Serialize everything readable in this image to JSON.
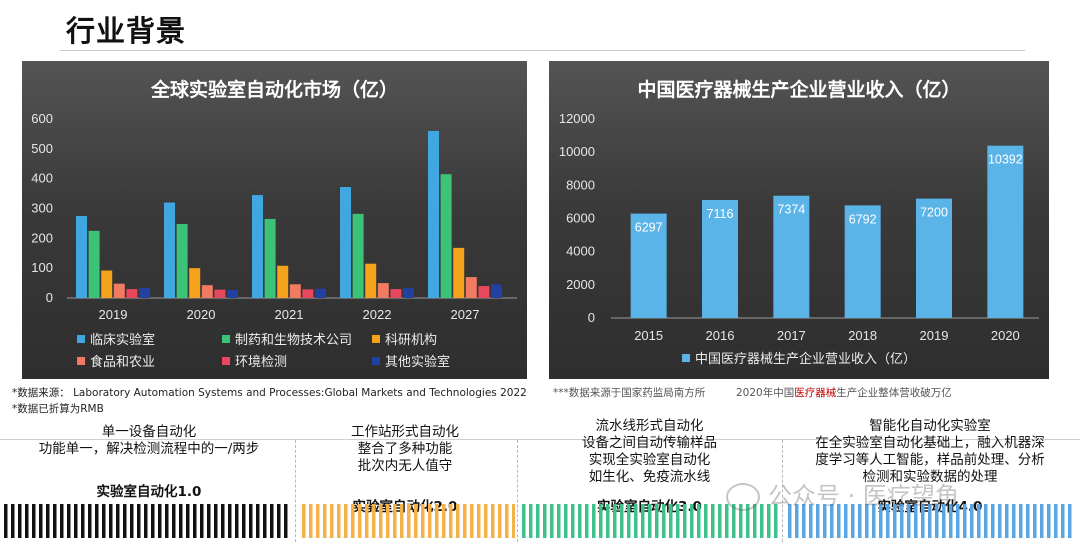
{
  "page": {
    "title": "行业背景"
  },
  "chart_data": [
    {
      "type": "bar",
      "title": "全球实验室自动化市场（亿）",
      "categories": [
        "2019",
        "2020",
        "2021",
        "2022",
        "2027"
      ],
      "ylim": [
        0,
        600
      ],
      "yticks": [
        "0",
        "100",
        "200",
        "300",
        "400",
        "500",
        "600"
      ],
      "grid": false,
      "legend": "bottom",
      "series": [
        {
          "name": "临床实验室",
          "color": "#41a7e0",
          "values": [
            275,
            320,
            345,
            372,
            560
          ]
        },
        {
          "name": "制药和生物技术公司",
          "color": "#3cc378",
          "values": [
            225,
            248,
            265,
            282,
            415
          ]
        },
        {
          "name": "科研机构",
          "color": "#f5a31a",
          "values": [
            92,
            100,
            108,
            115,
            168
          ]
        },
        {
          "name": "食品和农业",
          "color": "#f07a62",
          "values": [
            48,
            43,
            46,
            50,
            70
          ]
        },
        {
          "name": "环境检测",
          "color": "#e8485e",
          "values": [
            30,
            28,
            29,
            30,
            40
          ]
        },
        {
          "name": "其他实验室",
          "color": "#2140a0",
          "values": [
            34,
            27,
            31,
            33,
            46
          ]
        }
      ]
    },
    {
      "type": "bar",
      "title": "中国医疗器械生产企业营业收入（亿）",
      "categories": [
        "2015",
        "2016",
        "2017",
        "2018",
        "2019",
        "2020"
      ],
      "ylim": [
        0,
        12000
      ],
      "yticks": [
        "0",
        "2000",
        "4000",
        "6000",
        "8000",
        "10000",
        "12000"
      ],
      "grid": false,
      "legend": "bottom",
      "series": [
        {
          "name": "中国医疗器械生产企业营业收入（亿）",
          "color": "#5ab4e8",
          "values": [
            6297,
            7116,
            7374,
            6792,
            7200,
            10392
          ],
          "labels": [
            "6297",
            "7116",
            "7374",
            "6792",
            "7200",
            "10392"
          ]
        }
      ]
    }
  ],
  "notes": {
    "source1": "*数据来源：   Laboratory Automation Systems and Processes:Global Markets and Technologies 2022",
    "source2": "*数据已折算为RMB",
    "source3": "***数据来源于国家药监局南方所",
    "source4_pre": "2020年中国",
    "source4_red": "医疗器械",
    "source4_post": "生产企业整体营收破万亿"
  },
  "stages": [
    {
      "name": "单一设备自动化",
      "lines": [
        "功能单一，解决检测流程中的一/两步"
      ],
      "label": "实验室自动化1.0",
      "color": "#111111"
    },
    {
      "name": "工作站形式自动化",
      "lines": [
        "整合了多种功能",
        "批次内无人值守"
      ],
      "label": "实验室自动化2.0",
      "color": "#f5b24a"
    },
    {
      "name": "流水线形式自动化",
      "lines": [
        "设备之间自动传输样品",
        "实现全实验室自动化",
        "如生化、免疫流水线"
      ],
      "label": "实验室自动化3.0",
      "color": "#3ec18a"
    },
    {
      "name": "智能化自动化实验室",
      "lines": [
        "在全实验室自动化基础上，融入机器深",
        "度学习等人工智能，样品前处理、分析",
        "检测和实验数据的处理"
      ],
      "label": "实验室自动化4.0",
      "color": "#5aa5e6"
    }
  ],
  "watermark": {
    "text": "公众号 · 医疗望角"
  }
}
